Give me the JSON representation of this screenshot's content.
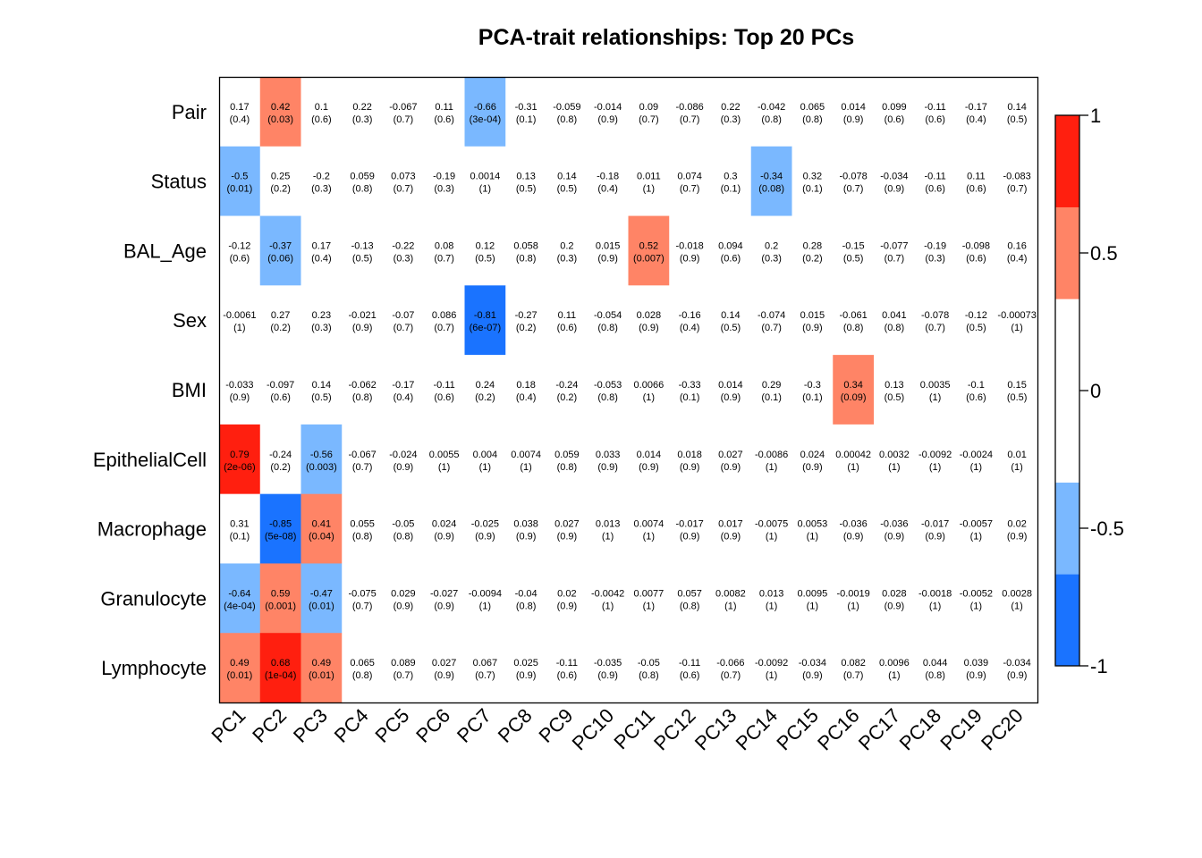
{
  "chart_data": {
    "type": "heatmap",
    "title": "PCA-trait relationships: Top 20 PCs",
    "rows": [
      "Pair",
      "Status",
      "BAL_Age",
      "Sex",
      "BMI",
      "EpithelialCell",
      "Macrophage",
      "Granulocyte",
      "Lymphocyte"
    ],
    "columns": [
      "PC1",
      "PC2",
      "PC3",
      "PC4",
      "PC5",
      "PC6",
      "PC7",
      "PC8",
      "PC9",
      "PC10",
      "PC11",
      "PC12",
      "PC13",
      "PC14",
      "PC15",
      "PC16",
      "PC17",
      "PC18",
      "PC19",
      "PC20"
    ],
    "values": [
      [
        "0.17",
        "0.42",
        "0.1",
        "0.22",
        "-0.067",
        "0.11",
        "-0.66",
        "-0.31",
        "-0.059",
        "-0.014",
        "0.09",
        "-0.086",
        "0.22",
        "-0.042",
        "0.065",
        "0.014",
        "0.099",
        "-0.11",
        "-0.17",
        "0.14"
      ],
      [
        "-0.5",
        "0.25",
        "-0.2",
        "0.059",
        "0.073",
        "-0.19",
        "0.0014",
        "0.13",
        "0.14",
        "-0.18",
        "0.011",
        "0.074",
        "0.3",
        "-0.34",
        "0.32",
        "-0.078",
        "-0.034",
        "-0.11",
        "0.11",
        "-0.083"
      ],
      [
        "-0.12",
        "-0.37",
        "0.17",
        "-0.13",
        "-0.22",
        "0.08",
        "0.12",
        "0.058",
        "0.2",
        "0.015",
        "0.52",
        "-0.018",
        "0.094",
        "0.2",
        "0.28",
        "-0.15",
        "-0.077",
        "-0.19",
        "-0.098",
        "0.16"
      ],
      [
        "-0.0061",
        "0.27",
        "0.23",
        "-0.021",
        "-0.07",
        "0.086",
        "-0.81",
        "-0.27",
        "0.11",
        "-0.054",
        "0.028",
        "-0.16",
        "0.14",
        "-0.074",
        "0.015",
        "-0.061",
        "0.041",
        "-0.078",
        "-0.12",
        "-0.00073"
      ],
      [
        "-0.033",
        "-0.097",
        "0.14",
        "-0.062",
        "-0.17",
        "-0.11",
        "0.24",
        "0.18",
        "-0.24",
        "-0.053",
        "0.0066",
        "-0.33",
        "0.014",
        "0.29",
        "-0.3",
        "0.34",
        "0.13",
        "0.0035",
        "-0.1",
        "0.15"
      ],
      [
        "0.79",
        "-0.24",
        "-0.56",
        "-0.067",
        "-0.024",
        "0.0055",
        "0.004",
        "0.0074",
        "0.059",
        "0.033",
        "0.014",
        "0.018",
        "0.027",
        "-0.0086",
        "0.024",
        "0.00042",
        "0.0032",
        "-0.0092",
        "-0.0024",
        "0.01"
      ],
      [
        "0.31",
        "-0.85",
        "0.41",
        "0.055",
        "-0.05",
        "0.024",
        "-0.025",
        "0.038",
        "0.027",
        "0.013",
        "0.0074",
        "-0.017",
        "0.017",
        "-0.0075",
        "0.0053",
        "-0.036",
        "-0.036",
        "-0.017",
        "-0.0057",
        "0.02"
      ],
      [
        "-0.64",
        "0.59",
        "-0.47",
        "-0.075",
        "0.029",
        "-0.027",
        "-0.0094",
        "-0.04",
        "0.02",
        "-0.0042",
        "0.0077",
        "0.057",
        "0.0082",
        "0.013",
        "0.0095",
        "-0.0019",
        "0.028",
        "-0.0018",
        "-0.0052",
        "0.0028"
      ],
      [
        "0.49",
        "0.68",
        "0.49",
        "0.065",
        "0.089",
        "0.027",
        "0.067",
        "0.025",
        "-0.11",
        "-0.035",
        "-0.05",
        "-0.11",
        "-0.066",
        "-0.0092",
        "-0.034",
        "0.082",
        "0.0096",
        "0.044",
        "0.039",
        "-0.034"
      ]
    ],
    "pvalues": [
      [
        "(0.4)",
        "(0.03)",
        "(0.6)",
        "(0.3)",
        "(0.7)",
        "(0.6)",
        "(3e-04)",
        "(0.1)",
        "(0.8)",
        "(0.9)",
        "(0.7)",
        "(0.7)",
        "(0.3)",
        "(0.8)",
        "(0.8)",
        "(0.9)",
        "(0.6)",
        "(0.6)",
        "(0.4)",
        "(0.5)"
      ],
      [
        "(0.01)",
        "(0.2)",
        "(0.3)",
        "(0.8)",
        "(0.7)",
        "(0.3)",
        "(1)",
        "(0.5)",
        "(0.5)",
        "(0.4)",
        "(1)",
        "(0.7)",
        "(0.1)",
        "(0.08)",
        "(0.1)",
        "(0.7)",
        "(0.9)",
        "(0.6)",
        "(0.6)",
        "(0.7)"
      ],
      [
        "(0.6)",
        "(0.06)",
        "(0.4)",
        "(0.5)",
        "(0.3)",
        "(0.7)",
        "(0.5)",
        "(0.8)",
        "(0.3)",
        "(0.9)",
        "(0.007)",
        "(0.9)",
        "(0.6)",
        "(0.3)",
        "(0.2)",
        "(0.5)",
        "(0.7)",
        "(0.3)",
        "(0.6)",
        "(0.4)"
      ],
      [
        "(1)",
        "(0.2)",
        "(0.3)",
        "(0.9)",
        "(0.7)",
        "(0.7)",
        "(6e-07)",
        "(0.2)",
        "(0.6)",
        "(0.8)",
        "(0.9)",
        "(0.4)",
        "(0.5)",
        "(0.7)",
        "(0.9)",
        "(0.8)",
        "(0.8)",
        "(0.7)",
        "(0.5)",
        "(1)"
      ],
      [
        "(0.9)",
        "(0.6)",
        "(0.5)",
        "(0.8)",
        "(0.4)",
        "(0.6)",
        "(0.2)",
        "(0.4)",
        "(0.2)",
        "(0.8)",
        "(1)",
        "(0.1)",
        "(0.9)",
        "(0.1)",
        "(0.1)",
        "(0.09)",
        "(0.5)",
        "(1)",
        "(0.6)",
        "(0.5)"
      ],
      [
        "(2e-06)",
        "(0.2)",
        "(0.003)",
        "(0.7)",
        "(0.9)",
        "(1)",
        "(1)",
        "(1)",
        "(0.8)",
        "(0.9)",
        "(0.9)",
        "(0.9)",
        "(0.9)",
        "(1)",
        "(0.9)",
        "(1)",
        "(1)",
        "(1)",
        "(1)",
        "(1)"
      ],
      [
        "(0.1)",
        "(5e-08)",
        "(0.04)",
        "(0.8)",
        "(0.8)",
        "(0.9)",
        "(0.9)",
        "(0.9)",
        "(0.9)",
        "(1)",
        "(1)",
        "(0.9)",
        "(0.9)",
        "(1)",
        "(1)",
        "(0.9)",
        "(0.9)",
        "(0.9)",
        "(1)",
        "(0.9)"
      ],
      [
        "(4e-04)",
        "(0.001)",
        "(0.01)",
        "(0.7)",
        "(0.9)",
        "(0.9)",
        "(1)",
        "(0.8)",
        "(0.9)",
        "(1)",
        "(1)",
        "(0.8)",
        "(1)",
        "(1)",
        "(1)",
        "(1)",
        "(0.9)",
        "(1)",
        "(1)",
        "(1)"
      ],
      [
        "(0.01)",
        "(1e-04)",
        "(0.01)",
        "(0.8)",
        "(0.7)",
        "(0.9)",
        "(0.7)",
        "(0.9)",
        "(0.6)",
        "(0.9)",
        "(0.8)",
        "(0.6)",
        "(0.7)",
        "(1)",
        "(0.9)",
        "(0.7)",
        "(1)",
        "(0.8)",
        "(0.9)",
        "(0.9)"
      ]
    ],
    "color_scale": {
      "range": [
        -1,
        1
      ],
      "bins": [
        {
          "from": -1.0,
          "to": -0.6667,
          "color": "#1A73FF"
        },
        {
          "from": -0.6667,
          "to": -0.3333,
          "color": "#7AB8FF"
        },
        {
          "from": -0.3333,
          "to": 0.3333,
          "color": "#FFFFFF"
        },
        {
          "from": 0.3333,
          "to": 0.6667,
          "color": "#FF8466"
        },
        {
          "from": 0.6667,
          "to": 1.0,
          "color": "#FF1F0F"
        }
      ],
      "ticks": [
        "1",
        "0.5",
        "0",
        "-0.5",
        "-1"
      ]
    },
    "legend": "right"
  }
}
